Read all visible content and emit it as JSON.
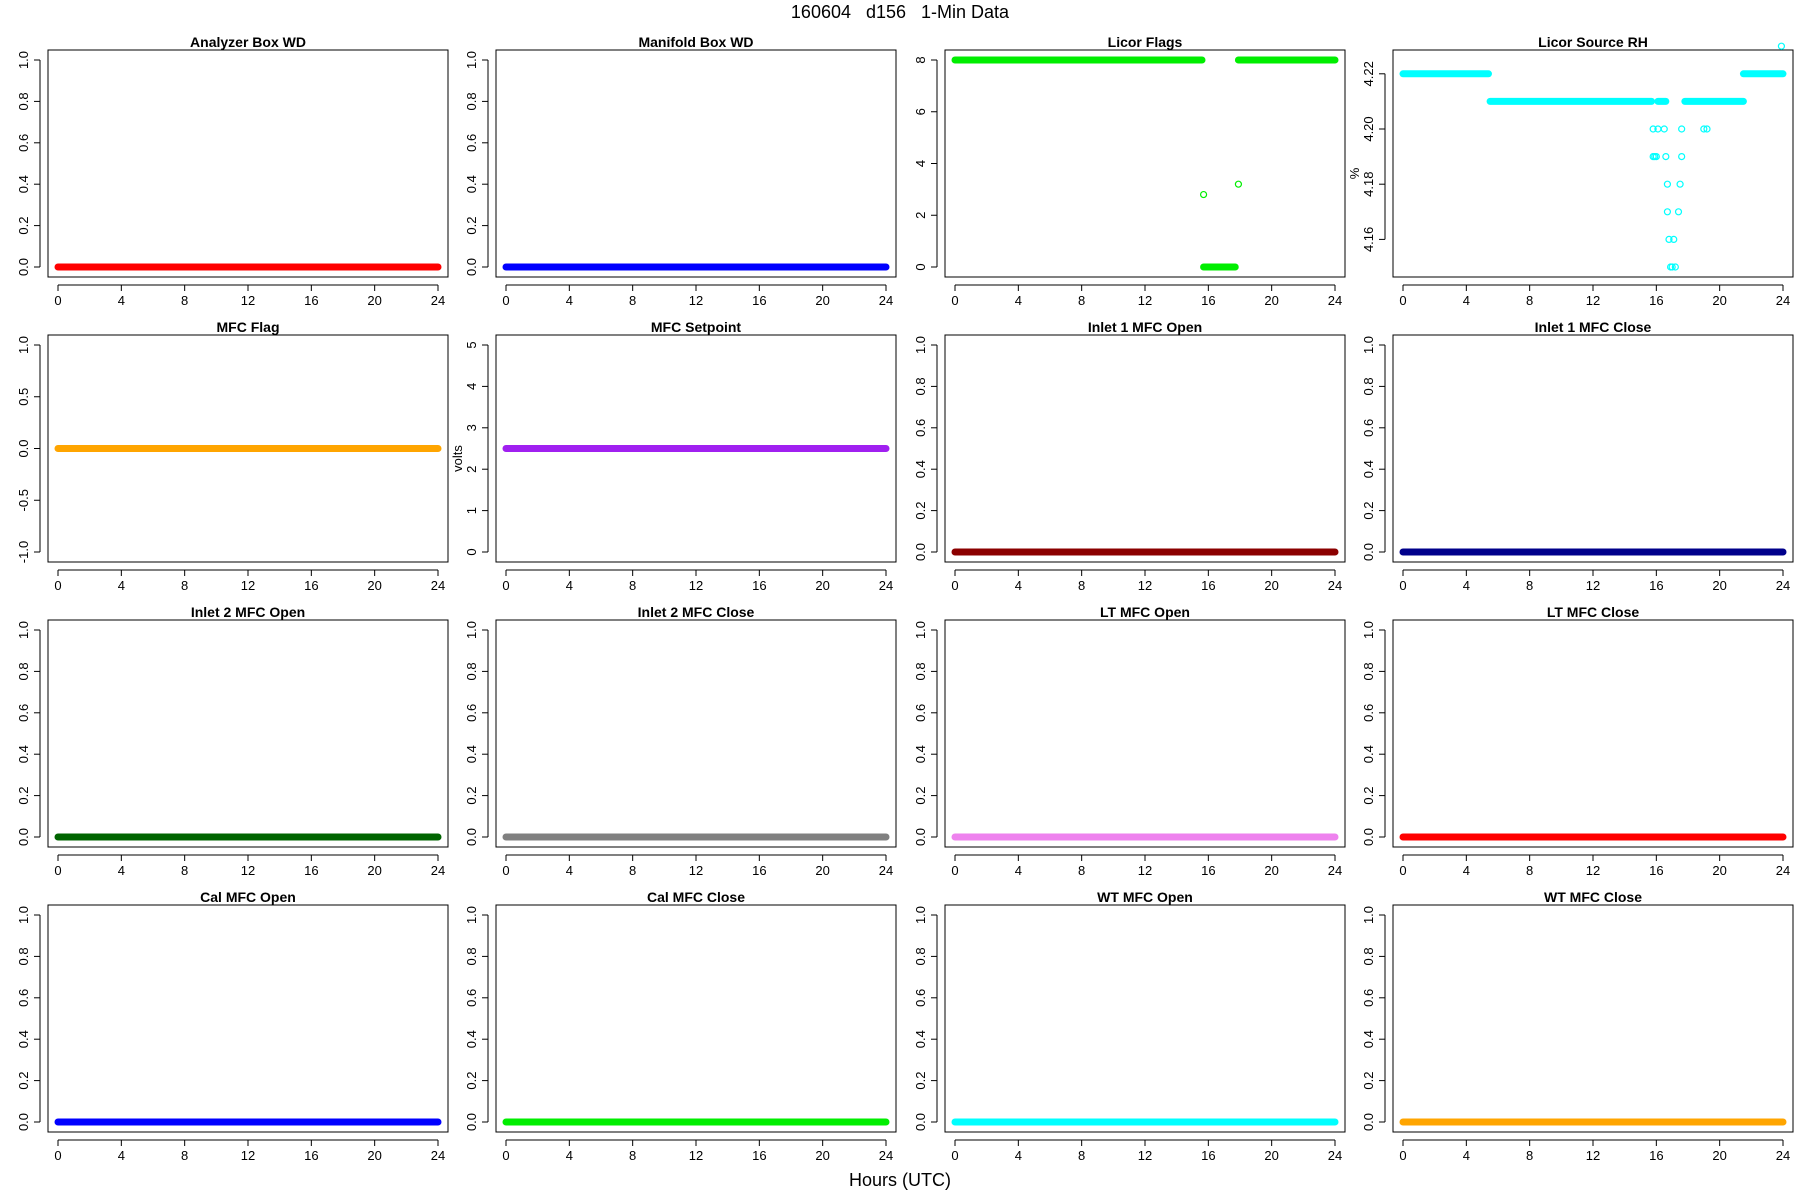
{
  "figure": {
    "title": "160604   d156   1-Min Data",
    "xlabel": "Hours (UTC)"
  },
  "chart_data": [
    {
      "type": "scatter",
      "title": "Analyzer Box WD",
      "ylabel": "",
      "color": "#ff0000",
      "xlim": [
        0,
        24
      ],
      "ylim": [
        0,
        1
      ],
      "xticks": [
        "0",
        "4",
        "8",
        "12",
        "16",
        "20",
        "24"
      ],
      "yticks": [
        "0.0",
        "0.2",
        "0.4",
        "0.6",
        "0.8",
        "1.0"
      ],
      "segments": [
        {
          "x": [
            0,
            13.3
          ],
          "y": 0
        },
        {
          "x": [
            13.35,
            24
          ],
          "y": 0
        }
      ]
    },
    {
      "type": "scatter",
      "title": "Manifold Box WD",
      "ylabel": "",
      "color": "#0000ff",
      "xlim": [
        0,
        24
      ],
      "ylim": [
        0,
        1
      ],
      "xticks": [
        "0",
        "4",
        "8",
        "12",
        "16",
        "20",
        "24"
      ],
      "yticks": [
        "0.0",
        "0.2",
        "0.4",
        "0.6",
        "0.8",
        "1.0"
      ],
      "segments": [
        {
          "x": [
            0,
            13.3
          ],
          "y": 0
        },
        {
          "x": [
            13.35,
            24
          ],
          "y": 0
        }
      ]
    },
    {
      "type": "scatter",
      "title": "Licor Flags",
      "ylabel": "",
      "color": "#00ee00",
      "xlim": [
        0,
        24
      ],
      "ylim": [
        0,
        8
      ],
      "xticks": [
        "0",
        "4",
        "8",
        "12",
        "16",
        "20",
        "24"
      ],
      "yticks": [
        "0",
        "2",
        "4",
        "6",
        "8"
      ],
      "segments": [
        {
          "x": [
            0,
            13.3
          ],
          "y": 8
        },
        {
          "x": [
            13.35,
            15.6
          ],
          "y": 8
        },
        {
          "x": [
            15.7,
            17.7
          ],
          "y": 0
        },
        {
          "x": [
            17.9,
            24
          ],
          "y": 8
        }
      ],
      "points": [
        {
          "x": 15.7,
          "y": 2.8
        },
        {
          "x": 17.9,
          "y": 3.2
        }
      ]
    },
    {
      "type": "scatter",
      "title": "Licor Source RH",
      "ylabel": "%",
      "color": "#00ffff",
      "xlim": [
        0,
        24
      ],
      "ylim": [
        4.15,
        4.225
      ],
      "xticks": [
        "0",
        "4",
        "8",
        "12",
        "16",
        "20",
        "24"
      ],
      "yticks": [
        "4.16",
        "4.18",
        "4.20",
        "4.22"
      ],
      "segments": [
        {
          "x": [
            0,
            5.4
          ],
          "y": 4.22
        },
        {
          "x": [
            5.5,
            15.7
          ],
          "y": 4.21
        },
        {
          "x": [
            16.1,
            16.6
          ],
          "y": 4.21
        },
        {
          "x": [
            17.8,
            21.5
          ],
          "y": 4.21
        },
        {
          "x": [
            21.5,
            24
          ],
          "y": 4.22
        }
      ],
      "points": [
        {
          "x": 15.8,
          "y": 4.2
        },
        {
          "x": 16.1,
          "y": 4.2
        },
        {
          "x": 16.5,
          "y": 4.2
        },
        {
          "x": 17.6,
          "y": 4.2
        },
        {
          "x": 19.0,
          "y": 4.2
        },
        {
          "x": 19.2,
          "y": 4.2
        },
        {
          "x": 15.8,
          "y": 4.19
        },
        {
          "x": 15.9,
          "y": 4.19
        },
        {
          "x": 16.0,
          "y": 4.19
        },
        {
          "x": 16.6,
          "y": 4.19
        },
        {
          "x": 17.6,
          "y": 4.19
        },
        {
          "x": 16.7,
          "y": 4.18
        },
        {
          "x": 17.5,
          "y": 4.18
        },
        {
          "x": 16.7,
          "y": 4.17
        },
        {
          "x": 17.4,
          "y": 4.17
        },
        {
          "x": 16.8,
          "y": 4.16
        },
        {
          "x": 17.1,
          "y": 4.16
        },
        {
          "x": 16.9,
          "y": 4.15
        },
        {
          "x": 17.0,
          "y": 4.15
        },
        {
          "x": 17.2,
          "y": 4.15
        },
        {
          "x": 23.9,
          "y": 4.23
        }
      ]
    },
    {
      "type": "scatter",
      "title": "MFC Flag",
      "ylabel": "",
      "color": "#ffa500",
      "xlim": [
        0,
        24
      ],
      "ylim": [
        -1,
        1
      ],
      "xticks": [
        "0",
        "4",
        "8",
        "12",
        "16",
        "20",
        "24"
      ],
      "yticks": [
        "-1.0",
        "-0.5",
        "0.0",
        "0.5",
        "1.0"
      ],
      "segments": [
        {
          "x": [
            0,
            13.3
          ],
          "y": 0
        },
        {
          "x": [
            13.35,
            24
          ],
          "y": 0
        }
      ]
    },
    {
      "type": "scatter",
      "title": "MFC Setpoint",
      "ylabel": "volts",
      "color": "#a020f0",
      "xlim": [
        0,
        24
      ],
      "ylim": [
        0,
        5
      ],
      "xticks": [
        "0",
        "4",
        "8",
        "12",
        "16",
        "20",
        "24"
      ],
      "yticks": [
        "0",
        "1",
        "2",
        "3",
        "4",
        "5"
      ],
      "segments": [
        {
          "x": [
            0,
            13.3
          ],
          "y": 2.5
        },
        {
          "x": [
            13.35,
            24
          ],
          "y": 2.5
        }
      ]
    },
    {
      "type": "scatter",
      "title": "Inlet 1 MFC Open",
      "ylabel": "",
      "color": "#8b0000",
      "xlim": [
        0,
        24
      ],
      "ylim": [
        0,
        1
      ],
      "xticks": [
        "0",
        "4",
        "8",
        "12",
        "16",
        "20",
        "24"
      ],
      "yticks": [
        "0.0",
        "0.2",
        "0.4",
        "0.6",
        "0.8",
        "1.0"
      ],
      "segments": [
        {
          "x": [
            0,
            13.3
          ],
          "y": 0
        },
        {
          "x": [
            13.35,
            24
          ],
          "y": 0
        }
      ]
    },
    {
      "type": "scatter",
      "title": "Inlet 1 MFC Close",
      "ylabel": "",
      "color": "#00008b",
      "xlim": [
        0,
        24
      ],
      "ylim": [
        0,
        1
      ],
      "xticks": [
        "0",
        "4",
        "8",
        "12",
        "16",
        "20",
        "24"
      ],
      "yticks": [
        "0.0",
        "0.2",
        "0.4",
        "0.6",
        "0.8",
        "1.0"
      ],
      "segments": [
        {
          "x": [
            0,
            13.3
          ],
          "y": 0
        },
        {
          "x": [
            13.35,
            24
          ],
          "y": 0
        }
      ]
    },
    {
      "type": "scatter",
      "title": "Inlet 2 MFC Open",
      "ylabel": "",
      "color": "#006400",
      "xlim": [
        0,
        24
      ],
      "ylim": [
        0,
        1
      ],
      "xticks": [
        "0",
        "4",
        "8",
        "12",
        "16",
        "20",
        "24"
      ],
      "yticks": [
        "0.0",
        "0.2",
        "0.4",
        "0.6",
        "0.8",
        "1.0"
      ],
      "segments": [
        {
          "x": [
            0,
            13.3
          ],
          "y": 0
        },
        {
          "x": [
            13.35,
            24
          ],
          "y": 0
        }
      ]
    },
    {
      "type": "scatter",
      "title": "Inlet 2 MFC Close",
      "ylabel": "",
      "color": "#808080",
      "xlim": [
        0,
        24
      ],
      "ylim": [
        0,
        1
      ],
      "xticks": [
        "0",
        "4",
        "8",
        "12",
        "16",
        "20",
        "24"
      ],
      "yticks": [
        "0.0",
        "0.2",
        "0.4",
        "0.6",
        "0.8",
        "1.0"
      ],
      "segments": [
        {
          "x": [
            0,
            13.3
          ],
          "y": 0
        },
        {
          "x": [
            13.35,
            24
          ],
          "y": 0
        }
      ]
    },
    {
      "type": "scatter",
      "title": "LT MFC Open",
      "ylabel": "",
      "color": "#ee82ee",
      "xlim": [
        0,
        24
      ],
      "ylim": [
        0,
        1
      ],
      "xticks": [
        "0",
        "4",
        "8",
        "12",
        "16",
        "20",
        "24"
      ],
      "yticks": [
        "0.0",
        "0.2",
        "0.4",
        "0.6",
        "0.8",
        "1.0"
      ],
      "segments": [
        {
          "x": [
            0,
            13.3
          ],
          "y": 0
        },
        {
          "x": [
            13.35,
            24
          ],
          "y": 0
        }
      ]
    },
    {
      "type": "scatter",
      "title": "LT MFC Close",
      "ylabel": "",
      "color": "#ff0000",
      "xlim": [
        0,
        24
      ],
      "ylim": [
        0,
        1
      ],
      "xticks": [
        "0",
        "4",
        "8",
        "12",
        "16",
        "20",
        "24"
      ],
      "yticks": [
        "0.0",
        "0.2",
        "0.4",
        "0.6",
        "0.8",
        "1.0"
      ],
      "segments": [
        {
          "x": [
            0,
            13.3
          ],
          "y": 0
        },
        {
          "x": [
            13.35,
            24
          ],
          "y": 0
        }
      ]
    },
    {
      "type": "scatter",
      "title": "Cal MFC Open",
      "ylabel": "",
      "color": "#0000ff",
      "xlim": [
        0,
        24
      ],
      "ylim": [
        0,
        1
      ],
      "xticks": [
        "0",
        "4",
        "8",
        "12",
        "16",
        "20",
        "24"
      ],
      "yticks": [
        "0.0",
        "0.2",
        "0.4",
        "0.6",
        "0.8",
        "1.0"
      ],
      "segments": [
        {
          "x": [
            0,
            13.3
          ],
          "y": 0
        },
        {
          "x": [
            13.35,
            24
          ],
          "y": 0
        }
      ]
    },
    {
      "type": "scatter",
      "title": "Cal MFC Close",
      "ylabel": "",
      "color": "#00ee00",
      "xlim": [
        0,
        24
      ],
      "ylim": [
        0,
        1
      ],
      "xticks": [
        "0",
        "4",
        "8",
        "12",
        "16",
        "20",
        "24"
      ],
      "yticks": [
        "0.0",
        "0.2",
        "0.4",
        "0.6",
        "0.8",
        "1.0"
      ],
      "segments": [
        {
          "x": [
            0,
            13.3
          ],
          "y": 0
        },
        {
          "x": [
            13.35,
            24
          ],
          "y": 0
        }
      ]
    },
    {
      "type": "scatter",
      "title": "WT MFC Open",
      "ylabel": "",
      "color": "#00ffff",
      "xlim": [
        0,
        24
      ],
      "ylim": [
        0,
        1
      ],
      "xticks": [
        "0",
        "4",
        "8",
        "12",
        "16",
        "20",
        "24"
      ],
      "yticks": [
        "0.0",
        "0.2",
        "0.4",
        "0.6",
        "0.8",
        "1.0"
      ],
      "segments": [
        {
          "x": [
            0,
            13.3
          ],
          "y": 0
        },
        {
          "x": [
            13.35,
            24
          ],
          "y": 0
        }
      ]
    },
    {
      "type": "scatter",
      "title": "WT MFC Close",
      "ylabel": "",
      "color": "#ffa500",
      "xlim": [
        0,
        24
      ],
      "ylim": [
        0,
        1
      ],
      "xticks": [
        "0",
        "4",
        "8",
        "12",
        "16",
        "20",
        "24"
      ],
      "yticks": [
        "0.0",
        "0.2",
        "0.4",
        "0.6",
        "0.8",
        "1.0"
      ],
      "segments": [
        {
          "x": [
            0,
            13.3
          ],
          "y": 0
        },
        {
          "x": [
            13.35,
            24
          ],
          "y": 0
        }
      ]
    }
  ]
}
